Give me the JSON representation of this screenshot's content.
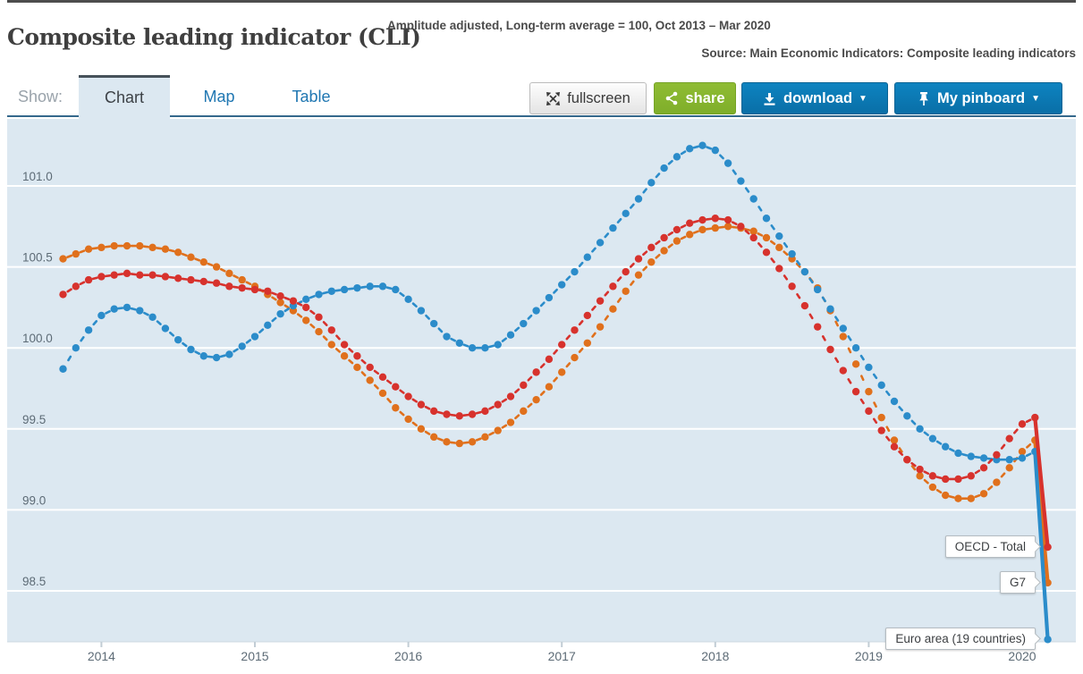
{
  "header": {
    "title": "Composite leading indicator (CLI)",
    "subtitle": "Amplitude adjusted, Long-term average = 100, Oct 2013 – Mar 2020",
    "source": "Source: Main Economic Indicators: Composite leading indicators"
  },
  "toolbar": {
    "show_label": "Show:",
    "tabs": [
      {
        "label": "Chart",
        "active": true
      },
      {
        "label": "Map",
        "active": false
      },
      {
        "label": "Table",
        "active": false
      }
    ],
    "buttons": {
      "fullscreen": {
        "label": "fullscreen",
        "icon": "fullscreen-arrows-icon"
      },
      "share": {
        "label": "share",
        "icon": "share-nodes-icon",
        "color": "#85b52e"
      },
      "download": {
        "label": "download",
        "icon": "download-arrow-icon",
        "caret": "▼",
        "color": "#0c7cb7"
      },
      "pinboard": {
        "label": "My pinboard",
        "icon": "pushpin-icon",
        "caret": "▼",
        "color": "#0c7cb7"
      }
    }
  },
  "chart_data": {
    "type": "line",
    "title": "Composite leading indicator (CLI)",
    "subtitle": "Amplitude adjusted, Long-term average = 100",
    "x_start": "2013-10",
    "x_end": "2020-03",
    "frequency": "monthly",
    "x_tick_labels": [
      "2014",
      "2015",
      "2016",
      "2017",
      "2018",
      "2019",
      "2020"
    ],
    "y_ticks": [
      98.5,
      99.0,
      99.5,
      100.0,
      100.5,
      101.0
    ],
    "ylim": [
      98.18,
      101.39
    ],
    "grid": "horizontal white lines on light blue panel",
    "plot_bg": "#dce8f1",
    "legend_position": "end-of-line labels",
    "series": [
      {
        "name": "OECD - Total",
        "color": "#d7322d",
        "values": [
          100.33,
          100.38,
          100.42,
          100.44,
          100.45,
          100.46,
          100.45,
          100.45,
          100.44,
          100.43,
          100.42,
          100.41,
          100.4,
          100.38,
          100.37,
          100.36,
          100.35,
          100.32,
          100.29,
          100.25,
          100.19,
          100.11,
          100.02,
          99.95,
          99.88,
          99.82,
          99.76,
          99.7,
          99.65,
          99.61,
          99.59,
          99.58,
          99.59,
          99.61,
          99.65,
          99.7,
          99.77,
          99.85,
          99.93,
          100.02,
          100.11,
          100.2,
          100.29,
          100.38,
          100.47,
          100.55,
          100.62,
          100.68,
          100.73,
          100.77,
          100.79,
          100.8,
          100.79,
          100.75,
          100.68,
          100.59,
          100.49,
          100.38,
          100.26,
          100.13,
          99.99,
          99.86,
          99.73,
          99.61,
          99.49,
          99.39,
          99.31,
          99.25,
          99.21,
          99.19,
          99.19,
          99.21,
          99.26,
          99.34,
          99.44,
          99.53,
          99.57,
          98.77
        ]
      },
      {
        "name": "G7",
        "color": "#e0701c",
        "values": [
          100.55,
          100.58,
          100.61,
          100.62,
          100.63,
          100.63,
          100.63,
          100.62,
          100.61,
          100.59,
          100.56,
          100.53,
          100.5,
          100.46,
          100.42,
          100.38,
          100.33,
          100.28,
          100.23,
          100.17,
          100.1,
          100.02,
          99.95,
          99.88,
          99.8,
          99.72,
          99.63,
          99.56,
          99.5,
          99.45,
          99.42,
          99.41,
          99.42,
          99.45,
          99.49,
          99.54,
          99.61,
          99.68,
          99.76,
          99.85,
          99.94,
          100.03,
          100.13,
          100.24,
          100.35,
          100.45,
          100.53,
          100.6,
          100.66,
          100.7,
          100.73,
          100.74,
          100.75,
          100.74,
          100.72,
          100.68,
          100.62,
          100.55,
          100.47,
          100.37,
          100.23,
          100.07,
          99.9,
          99.73,
          99.57,
          99.43,
          99.31,
          99.21,
          99.14,
          99.09,
          99.07,
          99.07,
          99.1,
          99.17,
          99.26,
          99.36,
          99.43,
          98.55
        ]
      },
      {
        "name": "Euro area (19 countries)",
        "color": "#2b8cca",
        "values": [
          99.87,
          100.0,
          100.11,
          100.2,
          100.24,
          100.25,
          100.23,
          100.19,
          100.12,
          100.05,
          99.99,
          99.95,
          99.94,
          99.96,
          100.01,
          100.07,
          100.14,
          100.21,
          100.26,
          100.3,
          100.33,
          100.35,
          100.36,
          100.37,
          100.38,
          100.38,
          100.36,
          100.3,
          100.23,
          100.15,
          100.07,
          100.03,
          100.0,
          100.0,
          100.02,
          100.08,
          100.15,
          100.23,
          100.31,
          100.39,
          100.47,
          100.56,
          100.65,
          100.74,
          100.83,
          100.92,
          101.02,
          101.11,
          101.18,
          101.23,
          101.25,
          101.22,
          101.14,
          101.03,
          100.92,
          100.8,
          100.69,
          100.58,
          100.47,
          100.36,
          100.24,
          100.12,
          100.0,
          99.88,
          99.77,
          99.67,
          99.58,
          99.5,
          99.44,
          99.39,
          99.35,
          99.33,
          99.32,
          99.31,
          99.31,
          99.32,
          99.36,
          98.2
        ]
      }
    ]
  }
}
